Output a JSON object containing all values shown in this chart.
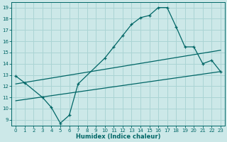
{
  "xlabel": "Humidex (Indice chaleur)",
  "bg_color": "#cce8e8",
  "line_color": "#006666",
  "grid_color": "#aad4d4",
  "xlim": [
    -0.5,
    23.5
  ],
  "ylim": [
    8.5,
    19.5
  ],
  "xticks": [
    0,
    1,
    2,
    3,
    4,
    5,
    6,
    7,
    8,
    9,
    10,
    11,
    12,
    13,
    14,
    15,
    16,
    17,
    18,
    19,
    20,
    21,
    22,
    23
  ],
  "yticks": [
    9,
    10,
    11,
    12,
    13,
    14,
    15,
    16,
    17,
    18,
    19
  ],
  "line1_x": [
    0,
    1,
    3,
    4,
    5,
    6,
    7,
    10,
    11,
    12,
    13,
    14,
    15,
    16,
    17,
    18,
    19,
    20,
    21,
    22,
    23
  ],
  "line1_y": [
    12.9,
    12.3,
    11.0,
    10.1,
    8.7,
    9.4,
    12.2,
    14.5,
    15.5,
    16.5,
    17.5,
    18.1,
    18.3,
    19.0,
    19.0,
    17.3,
    15.5,
    15.5,
    14.0,
    14.3,
    13.3
  ],
  "line2_x": [
    0,
    23
  ],
  "line2_y": [
    12.2,
    15.2
  ],
  "line3_x": [
    0,
    23
  ],
  "line3_y": [
    10.7,
    13.3
  ]
}
